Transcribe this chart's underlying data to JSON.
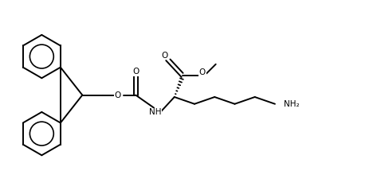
{
  "background": "#ffffff",
  "line_color": "#000000",
  "line_width": 1.4,
  "xlim": [
    0,
    10
  ],
  "ylim": [
    0,
    5
  ],
  "figsize": [
    4.88,
    2.44
  ],
  "dpi": 100
}
